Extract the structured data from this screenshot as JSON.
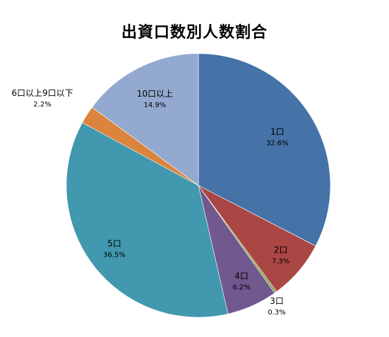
{
  "chart_data": {
    "type": "pie",
    "title": "出資口数別人数割合",
    "start_angle_deg": 0,
    "direction": "clockwise",
    "slices": [
      {
        "label": "1口",
        "value": 32.6,
        "value_label": "32.6%",
        "color": "#4572A7"
      },
      {
        "label": "2口",
        "value": 7.3,
        "value_label": "7.3%",
        "color": "#AA4643"
      },
      {
        "label": "3口",
        "value": 0.3,
        "value_label": "0.3%",
        "color": "#89A54E"
      },
      {
        "label": "4口",
        "value": 6.2,
        "value_label": "6.2%",
        "color": "#71588F"
      },
      {
        "label": "5口",
        "value": 36.5,
        "value_label": "36.5%",
        "color": "#4198AF"
      },
      {
        "label": "6口以上9口以下",
        "value": 2.2,
        "value_label": "2.2%",
        "color": "#DB843D"
      },
      {
        "label": "10口以上",
        "value": 14.9,
        "value_label": "14.9%",
        "color": "#93A9CF"
      }
    ],
    "legend": false
  }
}
